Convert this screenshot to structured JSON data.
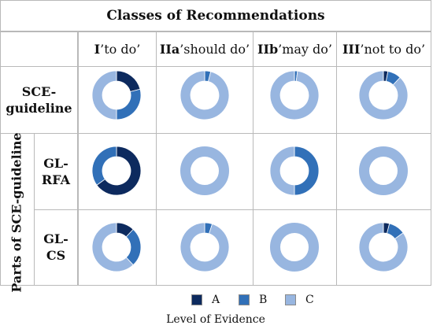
{
  "chart_data": {
    "type": "pie",
    "title": "Classes of Recommendations",
    "columns": [
      {
        "bold": "I",
        "rest": " ’to do’"
      },
      {
        "bold": "IIa",
        "rest": " ’should do’"
      },
      {
        "bold": "IIb",
        "rest": " ’may do’"
      },
      {
        "bold": "III",
        "rest": " ’not to do’"
      }
    ],
    "rows": [
      {
        "label_line1": "SCE-",
        "label_line2": "guideline",
        "values": [
          [
            0.21,
            0.29,
            0.5
          ],
          [
            0,
            0.04,
            0.96
          ],
          [
            0,
            0.02,
            0.98
          ],
          [
            0.03,
            0.09,
            0.88
          ]
        ]
      },
      {
        "label_line1": "GL-",
        "label_line2": "RFA",
        "values": [
          [
            0.65,
            0.35,
            0
          ],
          [
            0,
            0,
            1
          ],
          [
            0,
            0.5,
            0.5
          ],
          [
            0,
            0,
            1
          ]
        ]
      },
      {
        "label_line1": "GL-",
        "label_line2": "CS",
        "values": [
          [
            0.12,
            0.26,
            0.62
          ],
          [
            0,
            0.05,
            0.95
          ],
          [
            0,
            0,
            1
          ],
          [
            0.04,
            0.11,
            0.85
          ]
        ]
      }
    ],
    "group_label": "Parts of SCE-guideline",
    "series_colors": {
      "A": "#0d2a5e",
      "B": "#3170b8",
      "C": "#98b6e0"
    },
    "legend": [
      {
        "label": "A",
        "color": "#0d2a5e"
      },
      {
        "label": "B",
        "color": "#3170b8"
      },
      {
        "label": "C",
        "color": "#98b6e0"
      }
    ],
    "legend_title": "Level of Evidence"
  }
}
